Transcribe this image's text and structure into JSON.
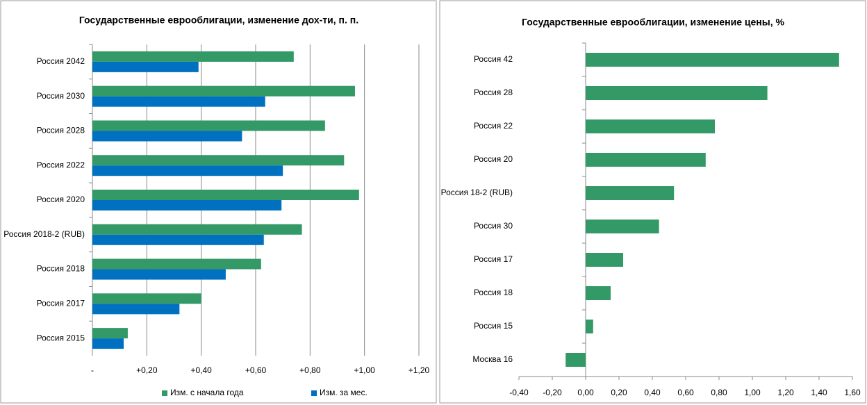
{
  "chart_data": [
    {
      "type": "hbar",
      "title": "Государственные еврооблигации, изменение дох-ти, п. п.",
      "categories": [
        "Россия 2042",
        "Россия 2030",
        "Россия 2028",
        "Россия 2022",
        "Россия 2020",
        "Россия 2018-2 (RUB)",
        "Россия 2018",
        "Россия 2017",
        "Россия 2015"
      ],
      "series": [
        {
          "name": "Изм. с начала года",
          "color": "#339966",
          "values": [
            0.74,
            0.965,
            0.855,
            0.925,
            0.98,
            0.77,
            0.62,
            0.4,
            0.13
          ]
        },
        {
          "name": "Изм. за мес.",
          "color": "#0070c0",
          "values": [
            0.39,
            0.635,
            0.55,
            0.7,
            0.695,
            0.63,
            0.49,
            0.32,
            0.115
          ]
        }
      ],
      "xlim": [
        0,
        1.2
      ],
      "xticks": [
        {
          "value": 0,
          "label": "-"
        },
        {
          "value": 0.2,
          "label": "+0,20"
        },
        {
          "value": 0.4,
          "label": "+0,40"
        },
        {
          "value": 0.6,
          "label": "+0,60"
        },
        {
          "value": 0.8,
          "label": "+0,80"
        },
        {
          "value": 1.0,
          "label": "+1,00"
        },
        {
          "value": 1.2,
          "label": "+1,20"
        }
      ],
      "tick_label_color": "#00cc00",
      "grid": true,
      "legend": "bottom"
    },
    {
      "type": "hbar",
      "title": "Государственные еврооблигации, изменение цены, %",
      "categories": [
        "Россия 42",
        "Россия 28",
        "Россия 22",
        "Россия 20",
        "Россия 18-2 (RUB)",
        "Россия 30",
        "Россия 17",
        "Россия 18",
        "Россия 15",
        "Москва 16"
      ],
      "values": [
        1.52,
        1.09,
        0.775,
        0.72,
        0.53,
        0.44,
        0.225,
        0.15,
        0.045,
        -0.12
      ],
      "color": "#339966",
      "xlim": [
        -0.4,
        1.6
      ],
      "xticks": [
        {
          "value": -0.4,
          "label": "-0,40"
        },
        {
          "value": -0.2,
          "label": "-0,20"
        },
        {
          "value": 0,
          "label": "0,00"
        },
        {
          "value": 0.2,
          "label": "0,20"
        },
        {
          "value": 0.4,
          "label": "0,40"
        },
        {
          "value": 0.6,
          "label": "0,60"
        },
        {
          "value": 0.8,
          "label": "0,80"
        },
        {
          "value": 1.0,
          "label": "1,00"
        },
        {
          "value": 1.2,
          "label": "1,20"
        },
        {
          "value": 1.4,
          "label": "1,40"
        },
        {
          "value": 1.6,
          "label": "1,60"
        }
      ],
      "grid": false
    }
  ]
}
